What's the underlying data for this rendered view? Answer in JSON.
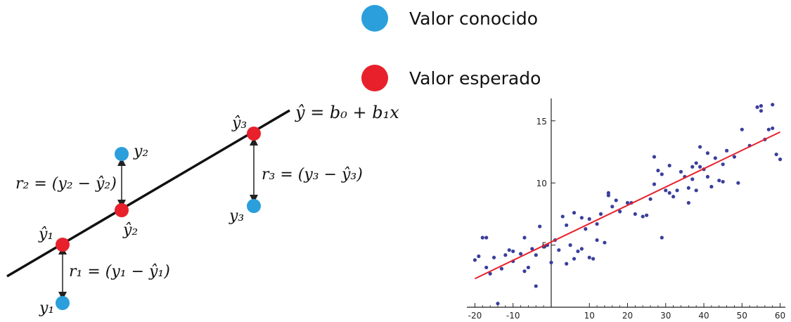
{
  "legend": [
    {
      "label": "Valor conocido",
      "color": "#2b9fdc"
    },
    {
      "label": "Valor esperado",
      "color": "#e8202b"
    }
  ],
  "diagram": {
    "line_label": "ŷ = b₀ + b₁x",
    "known_labels": [
      "y₁",
      "y₂",
      "y₃"
    ],
    "expected_labels": [
      "ŷ₁",
      "ŷ₂",
      "ŷ₃"
    ],
    "residual_labels": [
      "r₁ = (y₁ − ŷ₁)",
      "r₂ = (y₂ − ŷ₂)",
      "r₃ = (y₃ − ŷ₃)"
    ],
    "line_color": "#111111",
    "known_color": "#2b9fdc",
    "expected_color": "#e8202b"
  },
  "chart_data": {
    "type": "scatter",
    "title": "",
    "xlabel": "",
    "ylabel": "",
    "xlim": [
      -21,
      61
    ],
    "ylim": [
      0,
      16.8
    ],
    "x_ticks": [
      -20,
      -10,
      10,
      20,
      30,
      40,
      50,
      60
    ],
    "x_tick_labels": [
      "-20",
      "-10",
      "10",
      "20",
      "30",
      "40",
      "50",
      "60"
    ],
    "y_ticks": [
      5,
      10,
      15
    ],
    "y_tick_labels": [
      "5",
      "10",
      "15"
    ],
    "point_color": "#3a3f9c",
    "fit_color": "#e8202b",
    "points": [
      [
        -20,
        3.8
      ],
      [
        -19,
        4.1
      ],
      [
        -18,
        5.6
      ],
      [
        -17,
        5.6
      ],
      [
        -17,
        3.2
      ],
      [
        -16,
        2.7
      ],
      [
        -15,
        4.0
      ],
      [
        -14,
        0.3
      ],
      [
        -13,
        3.1
      ],
      [
        -12,
        4.2
      ],
      [
        -11,
        4.6
      ],
      [
        -10,
        4.5
      ],
      [
        -10,
        3.7
      ],
      [
        -8,
        4.3
      ],
      [
        -7,
        5.6
      ],
      [
        -7,
        2.9
      ],
      [
        -6,
        3.2
      ],
      [
        -5,
        4.7
      ],
      [
        -4,
        4.2
      ],
      [
        -4,
        1.7
      ],
      [
        -3,
        6.5
      ],
      [
        -2,
        4.9
      ],
      [
        -1,
        5.0
      ],
      [
        0,
        3.6
      ],
      [
        1,
        5.4
      ],
      [
        2,
        4.6
      ],
      [
        3,
        7.3
      ],
      [
        4,
        6.6
      ],
      [
        4,
        3.5
      ],
      [
        5,
        5.0
      ],
      [
        6,
        7.6
      ],
      [
        6,
        3.9
      ],
      [
        7,
        4.5
      ],
      [
        8,
        4.7
      ],
      [
        8,
        7.2
      ],
      [
        9,
        6.3
      ],
      [
        10,
        7.1
      ],
      [
        10,
        4.0
      ],
      [
        11,
        3.9
      ],
      [
        12,
        6.7
      ],
      [
        12,
        5.4
      ],
      [
        13,
        7.5
      ],
      [
        14,
        5.2
      ],
      [
        15,
        9.2
      ],
      [
        15,
        9.0
      ],
      [
        16,
        8.1
      ],
      [
        17,
        8.6
      ],
      [
        18,
        7.7
      ],
      [
        20,
        8.4
      ],
      [
        21,
        8.4
      ],
      [
        22,
        7.5
      ],
      [
        24,
        7.3
      ],
      [
        25,
        7.4
      ],
      [
        26,
        8.7
      ],
      [
        27,
        9.9
      ],
      [
        27,
        12.1
      ],
      [
        28,
        11.0
      ],
      [
        29,
        5.6
      ],
      [
        29,
        10.7
      ],
      [
        30,
        9.4
      ],
      [
        31,
        9.2
      ],
      [
        31,
        11.4
      ],
      [
        32,
        8.9
      ],
      [
        33,
        9.4
      ],
      [
        34,
        10.9
      ],
      [
        35,
        10.5
      ],
      [
        36,
        9.6
      ],
      [
        36,
        8.4
      ],
      [
        37,
        10.3
      ],
      [
        37,
        11.3
      ],
      [
        38,
        11.6
      ],
      [
        38,
        9.4
      ],
      [
        39,
        11.3
      ],
      [
        39,
        12.9
      ],
      [
        40,
        11.1
      ],
      [
        41,
        10.5
      ],
      [
        41,
        12.4
      ],
      [
        42,
        9.7
      ],
      [
        43,
        12.0
      ],
      [
        44,
        10.2
      ],
      [
        45,
        10.1
      ],
      [
        45,
        11.5
      ],
      [
        46,
        12.6
      ],
      [
        48,
        12.1
      ],
      [
        49,
        10.0
      ],
      [
        50,
        14.3
      ],
      [
        52,
        13.0
      ],
      [
        54,
        16.1
      ],
      [
        55,
        16.2
      ],
      [
        55,
        15.8
      ],
      [
        56,
        13.5
      ],
      [
        57,
        14.3
      ],
      [
        58,
        16.3
      ],
      [
        58,
        14.4
      ],
      [
        59,
        12.3
      ],
      [
        60,
        11.9
      ]
    ],
    "fit_line": {
      "x": [
        -20,
        60
      ],
      "y": [
        2.3,
        14.1
      ]
    }
  }
}
